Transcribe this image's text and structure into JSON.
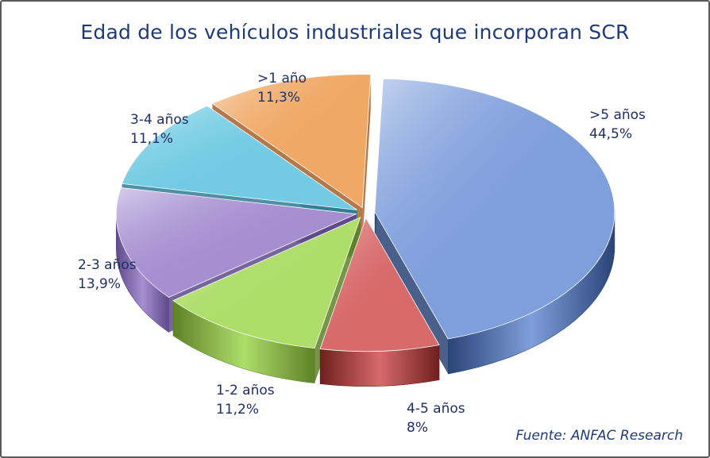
{
  "chart_data": {
    "type": "pie",
    "title": "Edad de los vehículos industriales que incorporan SCR",
    "source": "Fuente: ANFAC Research",
    "slices": [
      {
        "label": ">5 años",
        "value_label": "44,5%",
        "value": 44.5,
        "color": "#7f9fdc",
        "dark": "#2a4476"
      },
      {
        "label": "4-5 años",
        "value_label": "8%",
        "value": 8.0,
        "color": "#d86a6a",
        "dark": "#6e1f1f"
      },
      {
        "label": "1-2 años",
        "value_label": "11,2%",
        "value": 11.2,
        "color": "#aedd6a",
        "dark": "#5e8228"
      },
      {
        "label": "2-3 años",
        "value_label": "13,9%",
        "value": 13.9,
        "color": "#a68fd1",
        "dark": "#5f4a8c"
      },
      {
        "label": "3-4 años",
        "value_label": "11,1%",
        "value": 11.1,
        "color": "#72cbe3",
        "dark": "#2f7e96"
      },
      {
        "label": ">1 año",
        "value_label": "11,3%",
        "value": 11.3,
        "color": "#f0a865",
        "dark": "#a8602a"
      }
    ],
    "legend": "none"
  }
}
